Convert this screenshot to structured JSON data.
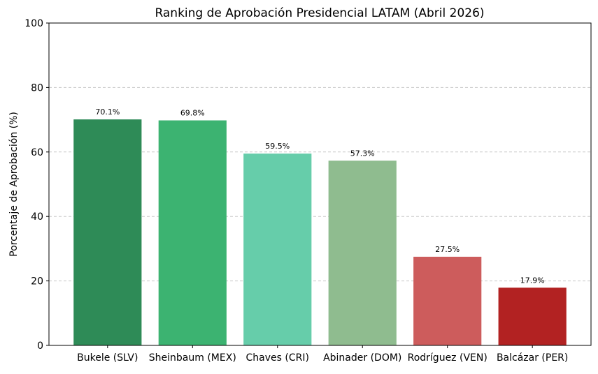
{
  "chart_data": {
    "type": "bar",
    "title": "Ranking de Aprobación Presidencial LATAM (Abril 2026)",
    "xlabel": "",
    "ylabel": "Porcentaje de Aprobación (%)",
    "ylim": [
      0,
      100
    ],
    "yticks": [
      0,
      20,
      40,
      60,
      80,
      100
    ],
    "grid": "y-dashed",
    "categories": [
      "Bukele (SLV)",
      "Sheinbaum (MEX)",
      "Chaves (CRI)",
      "Abinader (DOM)",
      "Rodríguez (VEN)",
      "Balcázar (PER)"
    ],
    "values": [
      70.1,
      69.8,
      59.5,
      57.3,
      27.5,
      17.9
    ],
    "value_labels": [
      "70.1%",
      "69.8%",
      "59.5%",
      "57.3%",
      "27.5%",
      "17.9%"
    ],
    "colors": [
      "#2e8b57",
      "#3cb371",
      "#66cdaa",
      "#8fbc8f",
      "#cd5c5c",
      "#b22222"
    ]
  }
}
